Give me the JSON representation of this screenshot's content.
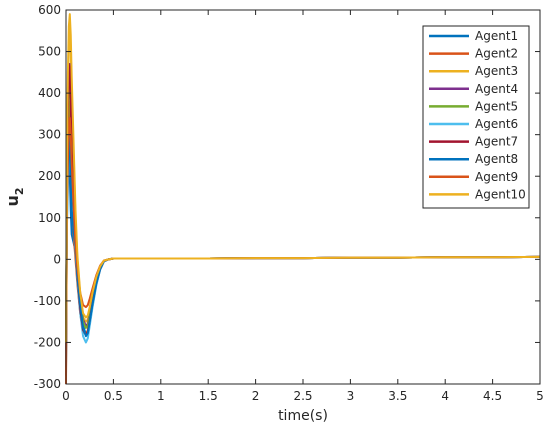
{
  "chart_data": {
    "type": "line",
    "title": "",
    "xlabel": "time(s)",
    "ylabel": "u",
    "ylabel_subscript": "2",
    "xlim": [
      0,
      5
    ],
    "ylim": [
      -300,
      600
    ],
    "x_ticks": [
      "0",
      "0.5",
      "1",
      "1.5",
      "2",
      "2.5",
      "3",
      "3.5",
      "4",
      "4.5",
      "5"
    ],
    "y_ticks": [
      "-300",
      "-200",
      "-100",
      "0",
      "100",
      "200",
      "300",
      "400",
      "500",
      "600"
    ],
    "grid": false,
    "legend_position": "top-right",
    "x": [
      0,
      0.01,
      0.02,
      0.03,
      0.04,
      0.05,
      0.06,
      0.08,
      0.1,
      0.12,
      0.15,
      0.18,
      0.21,
      0.23,
      0.25,
      0.28,
      0.32,
      0.36,
      0.4,
      0.45,
      0.5,
      0.55,
      0.6,
      1.0,
      1.5,
      2.0,
      2.5,
      3.0,
      3.5,
      4.0,
      4.5,
      5.0
    ],
    "series": [
      {
        "name": "Agent1",
        "color": "#0072BD",
        "values": [
          -250,
          100,
          220,
          280,
          200,
          120,
          60,
          40,
          20,
          -30,
          -100,
          -160,
          -180,
          -175,
          -150,
          -110,
          -60,
          -25,
          -5,
          0,
          2,
          2,
          2,
          2,
          2,
          3,
          3,
          4,
          4,
          5,
          5,
          6
        ]
      },
      {
        "name": "Agent2",
        "color": "#D95319",
        "values": [
          -300,
          150,
          300,
          380,
          330,
          240,
          140,
          60,
          0,
          -60,
          -130,
          -175,
          -180,
          -170,
          -140,
          -100,
          -55,
          -22,
          -4,
          0,
          2,
          2,
          2,
          2,
          2,
          3,
          3,
          4,
          4,
          5,
          5,
          6
        ]
      },
      {
        "name": "Agent3",
        "color": "#EDB120",
        "values": [
          -200,
          200,
          400,
          520,
          560,
          500,
          400,
          250,
          100,
          0,
          -90,
          -140,
          -150,
          -145,
          -120,
          -85,
          -45,
          -18,
          -3,
          0,
          2,
          2,
          2,
          2,
          2,
          3,
          3,
          4,
          4,
          5,
          5,
          6
        ]
      },
      {
        "name": "Agent4",
        "color": "#7E2F8E",
        "values": [
          -180,
          150,
          320,
          430,
          470,
          420,
          330,
          200,
          80,
          -10,
          -90,
          -145,
          -160,
          -155,
          -130,
          -90,
          -48,
          -19,
          -3,
          0,
          2,
          2,
          2,
          2,
          2,
          3,
          3,
          4,
          4,
          5,
          5,
          6
        ]
      },
      {
        "name": "Agent5",
        "color": "#77AC30",
        "values": [
          -150,
          120,
          280,
          390,
          440,
          400,
          320,
          190,
          70,
          -20,
          -100,
          -150,
          -165,
          -160,
          -135,
          -95,
          -50,
          -20,
          -4,
          0,
          2,
          2,
          2,
          2,
          2,
          3,
          3,
          4,
          4,
          5,
          5,
          6
        ]
      },
      {
        "name": "Agent6",
        "color": "#4DBEEE",
        "values": [
          -120,
          80,
          180,
          260,
          270,
          220,
          150,
          80,
          20,
          -50,
          -130,
          -185,
          -200,
          -190,
          -160,
          -115,
          -62,
          -25,
          -5,
          0,
          2,
          2,
          2,
          2,
          2,
          3,
          3,
          4,
          4,
          5,
          5,
          6
        ]
      },
      {
        "name": "Agent7",
        "color": "#A2142F",
        "values": [
          -220,
          180,
          360,
          470,
          460,
          380,
          270,
          150,
          40,
          -40,
          -120,
          -170,
          -182,
          -175,
          -148,
          -105,
          -57,
          -23,
          -4,
          0,
          2,
          2,
          2,
          2,
          2,
          3,
          3,
          4,
          4,
          5,
          5,
          6
        ]
      },
      {
        "name": "Agent8",
        "color": "#0072BD",
        "values": [
          -260,
          140,
          250,
          300,
          260,
          190,
          120,
          70,
          30,
          -40,
          -110,
          -165,
          -185,
          -178,
          -150,
          -108,
          -58,
          -23,
          -4,
          0,
          2,
          2,
          2,
          2,
          2,
          3,
          3,
          4,
          4,
          5,
          5,
          6
        ]
      },
      {
        "name": "Agent9",
        "color": "#D95319",
        "values": [
          -280,
          120,
          240,
          310,
          340,
          300,
          230,
          130,
          40,
          -20,
          -80,
          -110,
          -115,
          -110,
          -95,
          -70,
          -38,
          -15,
          -3,
          0,
          2,
          2,
          2,
          2,
          2,
          3,
          3,
          4,
          4,
          5,
          5,
          6
        ]
      },
      {
        "name": "Agent10",
        "color": "#EDB120",
        "values": [
          -200,
          250,
          450,
          560,
          590,
          540,
          440,
          280,
          120,
          10,
          -80,
          -130,
          -140,
          -135,
          -115,
          -80,
          -42,
          -17,
          -3,
          0,
          2,
          2,
          2,
          2,
          2,
          3,
          3,
          4,
          4,
          5,
          5,
          6
        ]
      }
    ]
  }
}
